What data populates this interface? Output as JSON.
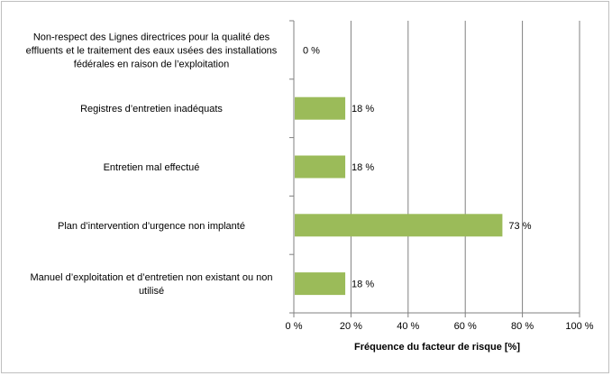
{
  "chart_data": {
    "type": "bar",
    "orientation": "horizontal",
    "categories": [
      [
        "Non-respect des Lignes directrices pour la qualité des",
        "effluents et le traitement des eaux usées des installations",
        "fédérales en raison de l’exploitation"
      ],
      [
        "Registres d’entretien inadéquats"
      ],
      [
        "Entretien mal effectué"
      ],
      [
        "Plan d’intervention d’urgence non implanté"
      ],
      [
        "Manuel d’exploitation et d’entretien non existant ou non",
        "utilisé"
      ]
    ],
    "values": [
      0,
      18,
      18,
      73,
      18
    ],
    "data_labels": [
      "0 %",
      "18 %",
      "18 %",
      "73 %",
      "18 %"
    ],
    "x_ticks": [
      0,
      20,
      40,
      60,
      80,
      100
    ],
    "x_tick_labels": [
      "0 %",
      "20 %",
      "40 %",
      "60 %",
      "80 %",
      "100 %"
    ],
    "xlim": [
      0,
      100
    ],
    "xlabel": "Fréquence du facteur de risque [%]",
    "ylabel": "",
    "title": "",
    "grid": "vertical",
    "legend": "none",
    "colors": {
      "bar": "#9bbb59",
      "grid": "#808080",
      "axis": "#808080"
    }
  }
}
